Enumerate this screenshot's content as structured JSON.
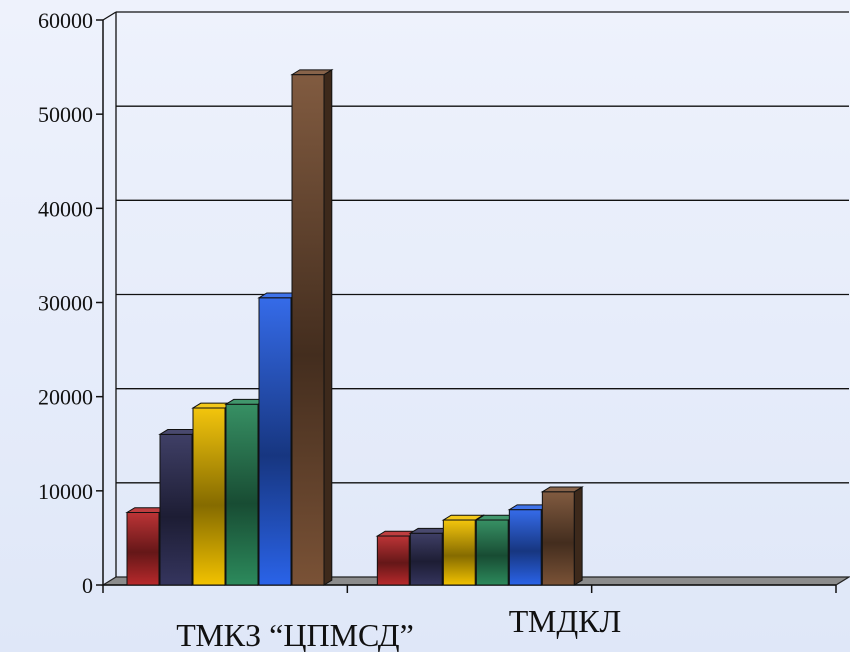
{
  "chart_data": {
    "type": "bar",
    "style": "3d-clustered",
    "categories": [
      "ТМКЗ “ЦПМСД”",
      "ТМДКЛ"
    ],
    "series": [
      {
        "color": "#b8292b",
        "values": [
          7700,
          5200
        ]
      },
      {
        "color": "#35355e",
        "values": [
          16000,
          5500
        ]
      },
      {
        "color": "#f2c200",
        "values": [
          18800,
          6900
        ]
      },
      {
        "color": "#2c8a5c",
        "values": [
          19200,
          6900
        ]
      },
      {
        "color": "#2a63e8",
        "values": [
          30500,
          8000
        ]
      },
      {
        "color": "#7a5236",
        "values": [
          54200,
          9900
        ]
      }
    ],
    "y_ticks": [
      "0",
      "10000",
      "20000",
      "30000",
      "40000",
      "50000",
      "60000"
    ],
    "ylim": [
      0,
      60000
    ],
    "grid": true,
    "legend": "none"
  }
}
